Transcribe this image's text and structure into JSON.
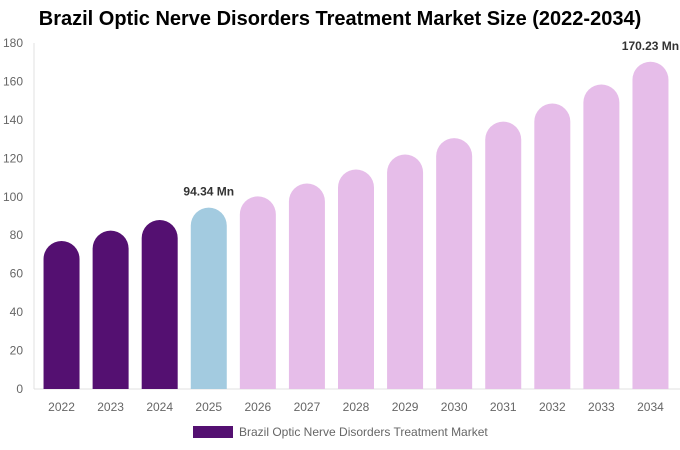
{
  "chart_data": {
    "type": "bar",
    "title": "Brazil Optic Nerve Disorders Treatment Market Size (2022-2034)",
    "categories": [
      "2022",
      "2023",
      "2024",
      "2025",
      "2026",
      "2027",
      "2028",
      "2029",
      "2030",
      "2031",
      "2032",
      "2033",
      "2034"
    ],
    "series": [
      {
        "name": "Brazil Optic Nerve Disorders Treatment Market",
        "values": [
          77.0,
          82.4,
          87.9,
          94.34,
          100.2,
          106.9,
          114.2,
          122.0,
          130.5,
          139.1,
          148.5,
          158.4,
          170.23
        ]
      }
    ],
    "data_labels": [
      {
        "category": "2025",
        "text": "94.34 Mn"
      },
      {
        "category": "2034",
        "text": "170.23 Mn"
      }
    ],
    "yticks": [
      "0",
      "20",
      "40",
      "60",
      "80",
      "100",
      "120",
      "140",
      "160",
      "180"
    ],
    "ylim": [
      0,
      180
    ],
    "xlabel": "",
    "ylabel": "",
    "grid": false,
    "legend": "bottom",
    "colors": {
      "historical": "#541071",
      "current": "#a3cbe0",
      "forecast": "#e6bde9"
    }
  }
}
